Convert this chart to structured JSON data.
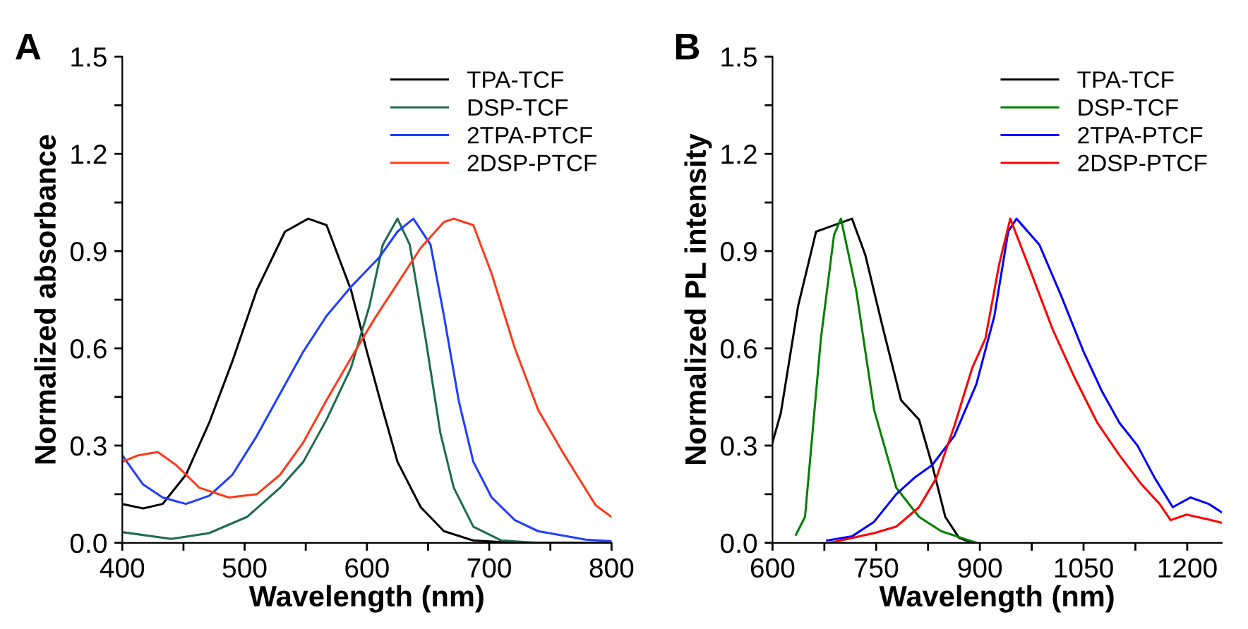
{
  "chart_data": [
    {
      "type": "line",
      "title": "A",
      "xlabel": "Wavelength (nm)",
      "ylabel": "Normalized absorbance",
      "xlim": [
        400,
        800
      ],
      "ylim": [
        0,
        1.5
      ],
      "xticks": [
        400,
        {
          "value": 450,
          "label": null
        },
        500,
        {
          "value": 550,
          "label": null
        },
        600,
        {
          "value": 650,
          "label": null
        },
        700,
        {
          "value": 750,
          "label": null
        },
        800
      ],
      "yticks": [
        {
          "value": 0,
          "label": "0.0"
        },
        {
          "value": 0.15,
          "label": null
        },
        0.3,
        {
          "value": 0.45,
          "label": null
        },
        0.6,
        {
          "value": 0.75,
          "label": null
        },
        0.9,
        {
          "value": 1.05,
          "label": null
        },
        1.2,
        {
          "value": 1.35,
          "label": null
        },
        1.5
      ],
      "legend": "top right",
      "grid": false,
      "marker": "none",
      "line_style": "solid",
      "series": [
        {
          "name": "TPA-TCF",
          "color": "#000000",
          "x": [
            400,
            417,
            433,
            452,
            471,
            490,
            510,
            533,
            552,
            567,
            587,
            600,
            613,
            625,
            644,
            663,
            687,
            721,
            800
          ],
          "values": [
            0.12,
            0.106,
            0.12,
            0.21,
            0.37,
            0.56,
            0.78,
            0.96,
            1.0,
            0.98,
            0.78,
            0.59,
            0.41,
            0.25,
            0.11,
            0.036,
            0.007,
            0.0,
            0.0
          ]
        },
        {
          "name": "DSP-TCF",
          "color": "#1f6b4f",
          "x": [
            400,
            440,
            471,
            502,
            529,
            548,
            567,
            587,
            602,
            613,
            625,
            635,
            648,
            660,
            671,
            687,
            710,
            740,
            800
          ],
          "values": [
            0.033,
            0.012,
            0.03,
            0.08,
            0.17,
            0.25,
            0.38,
            0.54,
            0.73,
            0.92,
            1.0,
            0.92,
            0.63,
            0.34,
            0.17,
            0.05,
            0.007,
            0.0,
            0.0
          ]
        },
        {
          "name": "2TPA-PTCF",
          "color": "#1f3fff",
          "x": [
            400,
            417,
            433,
            452,
            471,
            490,
            510,
            529,
            548,
            567,
            587,
            610,
            625,
            638,
            652,
            663,
            675,
            687,
            702,
            721,
            740,
            779,
            800
          ],
          "values": [
            0.27,
            0.18,
            0.14,
            0.12,
            0.145,
            0.21,
            0.33,
            0.46,
            0.59,
            0.7,
            0.79,
            0.88,
            0.96,
            1.0,
            0.92,
            0.7,
            0.44,
            0.25,
            0.14,
            0.07,
            0.036,
            0.01,
            0.005
          ]
        },
        {
          "name": "2DSP-PTCF",
          "color": "#ff3a1a",
          "x": [
            400,
            413,
            429,
            444,
            463,
            487,
            510,
            529,
            548,
            567,
            587,
            606,
            625,
            644,
            663,
            671,
            687,
            702,
            721,
            740,
            760,
            787,
            800
          ],
          "values": [
            0.25,
            0.27,
            0.28,
            0.24,
            0.17,
            0.14,
            0.15,
            0.21,
            0.31,
            0.44,
            0.57,
            0.69,
            0.8,
            0.91,
            0.99,
            1.0,
            0.98,
            0.83,
            0.6,
            0.41,
            0.28,
            0.116,
            0.08
          ]
        }
      ]
    },
    {
      "type": "line",
      "title": "B",
      "xlabel": "Wavelength (nm)",
      "ylabel": "Normalized PL intensity",
      "xlim": [
        600,
        1250
      ],
      "ylim": [
        0,
        1.5
      ],
      "xticks": [
        600,
        {
          "value": 675,
          "label": null
        },
        750,
        {
          "value": 825,
          "label": null
        },
        900,
        {
          "value": 975,
          "label": null
        },
        1050,
        {
          "value": 1125,
          "label": null
        },
        1200
      ],
      "yticks": [
        {
          "value": 0,
          "label": "0.0"
        },
        {
          "value": 0.15,
          "label": null
        },
        0.3,
        {
          "value": 0.45,
          "label": null
        },
        0.6,
        {
          "value": 0.75,
          "label": null
        },
        0.9,
        {
          "value": 1.05,
          "label": null
        },
        1.2,
        {
          "value": 1.35,
          "label": null
        },
        1.5
      ],
      "legend": "top right",
      "grid": false,
      "marker": "none",
      "line_style": "solid",
      "series": [
        {
          "name": "TPA-TCF",
          "color": "#000000",
          "x": [
            600,
            612,
            637,
            663,
            689,
            715,
            734,
            760,
            786,
            812,
            831,
            850,
            870,
            889
          ],
          "values": [
            0.31,
            0.4,
            0.73,
            0.96,
            0.98,
            1.0,
            0.89,
            0.66,
            0.44,
            0.38,
            0.24,
            0.08,
            0.015,
            0.0
          ]
        },
        {
          "name": "DSP-TCF",
          "color": "#008000",
          "x": [
            634,
            647,
            670,
            689,
            699,
            721,
            747,
            779,
            812,
            844,
            895
          ],
          "values": [
            0.025,
            0.08,
            0.63,
            0.95,
            1.0,
            0.78,
            0.41,
            0.17,
            0.08,
            0.036,
            0.0
          ]
        },
        {
          "name": "2TPA-PTCF",
          "color": "#0000ff",
          "x": [
            679,
            715,
            747,
            779,
            805,
            831,
            863,
            895,
            921,
            941,
            953,
            986,
            1018,
            1050,
            1076,
            1102,
            1128,
            1153,
            1179,
            1205,
            1231,
            1250
          ],
          "values": [
            0.007,
            0.02,
            0.065,
            0.15,
            0.2,
            0.24,
            0.33,
            0.49,
            0.7,
            0.96,
            1.0,
            0.92,
            0.76,
            0.59,
            0.47,
            0.37,
            0.3,
            0.2,
            0.11,
            0.14,
            0.12,
            0.094
          ]
        },
        {
          "name": "2DSP-PTCF",
          "color": "#ff0000",
          "x": [
            683,
            747,
            779,
            812,
            837,
            863,
            889,
            908,
            928,
            944,
            973,
            1005,
            1037,
            1070,
            1102,
            1134,
            1160,
            1176,
            1199,
            1231,
            1250
          ],
          "values": [
            0.0,
            0.03,
            0.05,
            0.11,
            0.2,
            0.36,
            0.54,
            0.63,
            0.86,
            1.0,
            0.84,
            0.66,
            0.51,
            0.37,
            0.27,
            0.18,
            0.12,
            0.07,
            0.087,
            0.072,
            0.062
          ]
        }
      ]
    }
  ]
}
